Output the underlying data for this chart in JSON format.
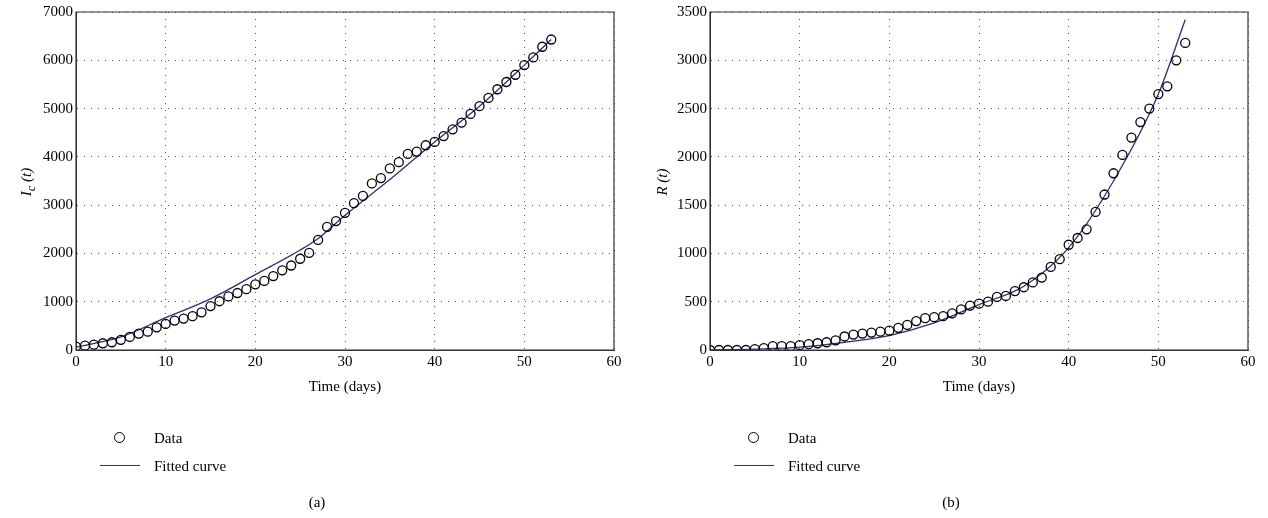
{
  "chart_data": [
    {
      "type": "scatter",
      "xlabel": "Time (days)",
      "ylabel": "I$_{c}$ (t)",
      "xlim": [
        0,
        60
      ],
      "xticks": [
        0,
        10,
        20,
        30,
        40,
        50,
        60
      ],
      "ylim": [
        0,
        7000
      ],
      "yticks": [
        0,
        1000,
        2000,
        3000,
        4000,
        5000,
        6000,
        7000
      ],
      "grid": true,
      "legend": "bottom",
      "annotations": [
        "(a)"
      ],
      "series": [
        {
          "name": "Data",
          "marker": "circle",
          "color": "#000000",
          "x": [
            0,
            1,
            2,
            3,
            4,
            5,
            6,
            7,
            8,
            9,
            10,
            11,
            12,
            13,
            14,
            15,
            16,
            17,
            18,
            19,
            20,
            21,
            22,
            23,
            24,
            25,
            26,
            27,
            28,
            29,
            30,
            31,
            32,
            33,
            34,
            35,
            36,
            37,
            38,
            39,
            40,
            41,
            42,
            43,
            44,
            45,
            46,
            47,
            48,
            49,
            50,
            51,
            52,
            53
          ],
          "values": [
            70,
            90,
            110,
            140,
            160,
            210,
            270,
            340,
            380,
            470,
            540,
            610,
            650,
            700,
            780,
            910,
            1010,
            1110,
            1180,
            1260,
            1360,
            1430,
            1530,
            1650,
            1750,
            1890,
            2010,
            2280,
            2550,
            2670,
            2840,
            3040,
            3190,
            3450,
            3560,
            3760,
            3890,
            4060,
            4110,
            4240,
            4310,
            4430,
            4570,
            4710,
            4890,
            5050,
            5220,
            5400,
            5550,
            5700,
            5900,
            6060,
            6280,
            6430
          ]
        },
        {
          "name": "Fitted curve",
          "type": "line",
          "marker": "none",
          "color": "#2e2a8c",
          "x": [
            0,
            5,
            10,
            15,
            20,
            25,
            27,
            30,
            35,
            40,
            45,
            50,
            53
          ],
          "values": [
            60,
            270,
            670,
            1060,
            1560,
            2070,
            2310,
            2790,
            3530,
            4310,
            5050,
            5900,
            6430
          ]
        }
      ]
    },
    {
      "type": "scatter",
      "xlabel": "Time (days)",
      "ylabel": "R (t)",
      "xlim": [
        0,
        60
      ],
      "xticks": [
        0,
        10,
        20,
        30,
        40,
        50,
        60
      ],
      "ylim": [
        0,
        3500
      ],
      "yticks": [
        0,
        500,
        1000,
        1500,
        2000,
        2500,
        3000,
        3500
      ],
      "grid": true,
      "legend": "bottom",
      "annotations": [
        "(b)"
      ],
      "series": [
        {
          "name": "Data",
          "marker": "circle",
          "color": "#000000",
          "x": [
            0,
            1,
            2,
            3,
            4,
            5,
            6,
            7,
            8,
            9,
            10,
            11,
            12,
            13,
            14,
            15,
            16,
            17,
            18,
            19,
            20,
            21,
            22,
            23,
            24,
            25,
            26,
            27,
            28,
            29,
            30,
            31,
            32,
            33,
            34,
            35,
            36,
            37,
            38,
            39,
            40,
            41,
            42,
            43,
            44,
            45,
            46,
            47,
            48,
            49,
            50,
            51,
            52,
            53
          ],
          "values": [
            0,
            0,
            0,
            0,
            0,
            10,
            20,
            40,
            40,
            40,
            50,
            60,
            70,
            80,
            100,
            140,
            160,
            170,
            180,
            190,
            200,
            230,
            260,
            300,
            330,
            340,
            350,
            380,
            420,
            460,
            480,
            500,
            550,
            560,
            610,
            650,
            700,
            750,
            860,
            940,
            1090,
            1160,
            1250,
            1430,
            1610,
            1830,
            2020,
            2200,
            2360,
            2500,
            2650,
            2730,
            3000,
            3180
          ]
        },
        {
          "name": "Fitted curve",
          "type": "line",
          "marker": "none",
          "color": "#2e2a8c",
          "x": [
            0,
            5,
            10,
            15,
            20,
            25,
            30,
            35,
            40,
            45,
            50,
            53
          ],
          "values": [
            0,
            10,
            30,
            80,
            150,
            280,
            470,
            660,
            1060,
            1750,
            2650,
            3420
          ]
        }
      ]
    }
  ]
}
